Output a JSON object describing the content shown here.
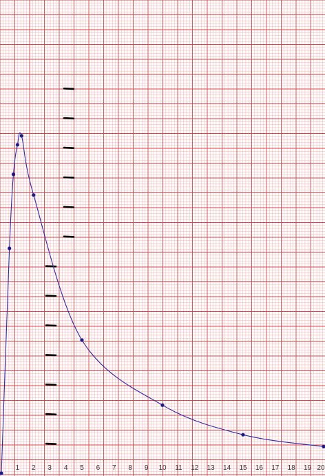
{
  "chart_data": {
    "type": "line",
    "title": "",
    "xlabel": "",
    "ylabel": "",
    "xlim": [
      0,
      20
    ],
    "x_ticks": [
      1,
      2,
      3,
      4,
      5,
      6,
      7,
      8,
      9,
      10,
      11,
      12,
      13,
      14,
      15,
      16,
      17,
      18,
      19,
      20
    ],
    "x_tick_labels": [
      "1",
      "2",
      "3",
      "4",
      "5",
      "6",
      "7",
      "8",
      "9",
      "10",
      "11",
      "12",
      "13",
      "14",
      "15",
      "16",
      "17",
      "18",
      "19",
      "20"
    ],
    "y_marks": [
      13,
      12,
      11,
      10,
      9,
      8,
      7,
      6,
      5,
      4,
      3,
      2,
      1
    ],
    "ylim": [
      0,
      15
    ],
    "grid": true,
    "series": [
      {
        "x": [
          0,
          0.5,
          0.75,
          1.0,
          1.25,
          2.0,
          5,
          10,
          15,
          20
        ],
        "y": [
          0,
          7.6,
          10.1,
          11.1,
          11.4,
          9.4,
          4.5,
          2.3,
          1.3,
          0.9
        ]
      }
    ],
    "colors": {
      "line": "#2a2aa8",
      "point": "#1a1a8c",
      "grid_minor": "#f2b3b3",
      "grid_major": "#d64848",
      "tick_marks": "#000000"
    }
  }
}
